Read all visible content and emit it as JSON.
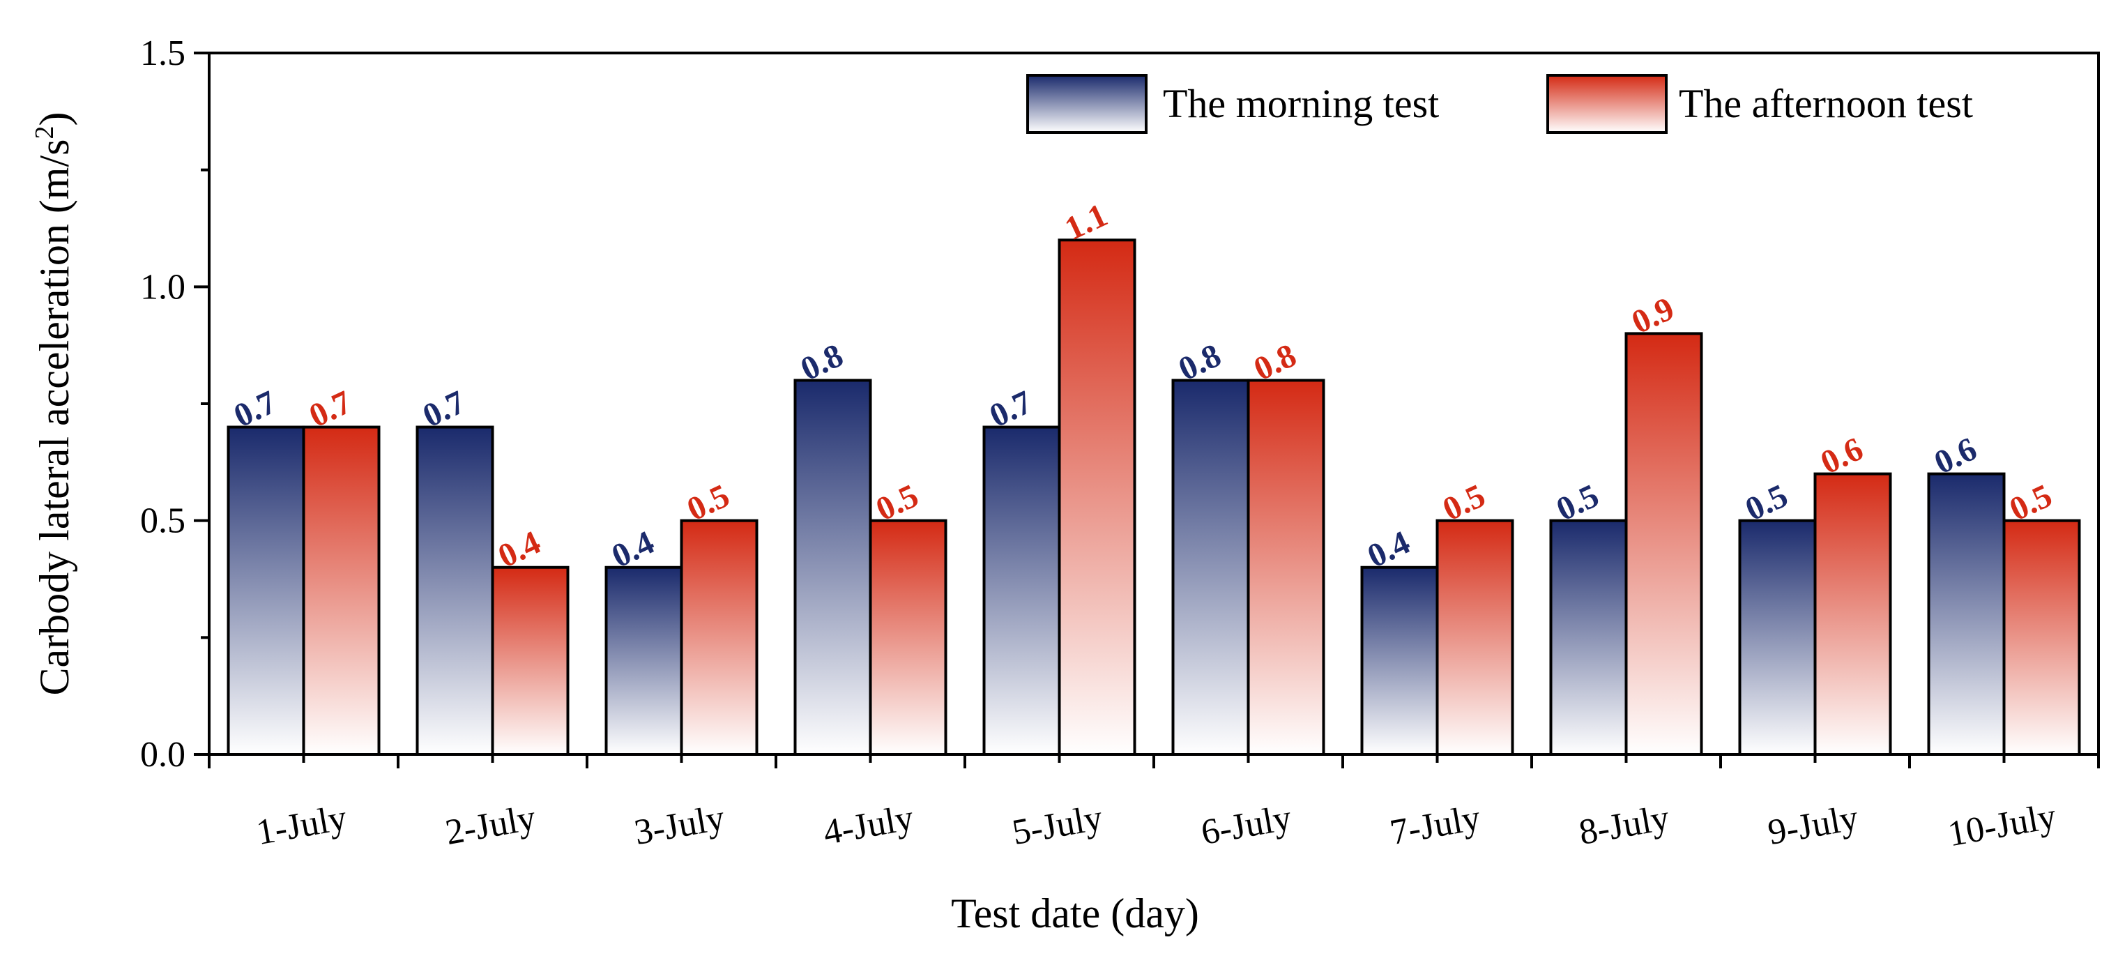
{
  "chart_data": {
    "type": "bar",
    "title": "",
    "xlabel": "Test date (day)",
    "ylabel_main": "Carbody lateral acceleration (m/s",
    "ylabel_sup": "2",
    "ylabel_close": ")",
    "ylim": [
      0,
      1.5
    ],
    "yticks": [
      0.0,
      0.5,
      1.0,
      1.5
    ],
    "ytick_labels": [
      "0.0",
      "0.5",
      "1.0",
      "1.5"
    ],
    "categories": [
      "1-July",
      "2-July",
      "3-July",
      "4-July",
      "5-July",
      "6-July",
      "7-July",
      "8-July",
      "9-July",
      "10-July"
    ],
    "series": [
      {
        "name": "The morning test",
        "values": [
          0.7,
          0.7,
          0.4,
          0.8,
          0.7,
          0.8,
          0.4,
          0.5,
          0.5,
          0.6
        ],
        "labels": [
          "0.7",
          "0.7",
          "0.4",
          "0.8",
          "0.7",
          "0.8",
          "0.4",
          "0.5",
          "0.5",
          "0.6"
        ],
        "color_top": "#1a2a6c",
        "color_bottom": "#ffffff",
        "label_color": "#1b2a6b"
      },
      {
        "name": "The afternoon test",
        "values": [
          0.7,
          0.4,
          0.5,
          0.5,
          1.1,
          0.8,
          0.5,
          0.9,
          0.6,
          0.5
        ],
        "labels": [
          "0.7",
          "0.4",
          "0.5",
          "0.5",
          "1.1",
          "0.8",
          "0.5",
          "0.9",
          "0.6",
          "0.5"
        ],
        "color_top": "#d42a14",
        "color_bottom": "#ffffff",
        "label_color": "#d42a14"
      }
    ],
    "legend_position": "top-right",
    "grid": false
  }
}
